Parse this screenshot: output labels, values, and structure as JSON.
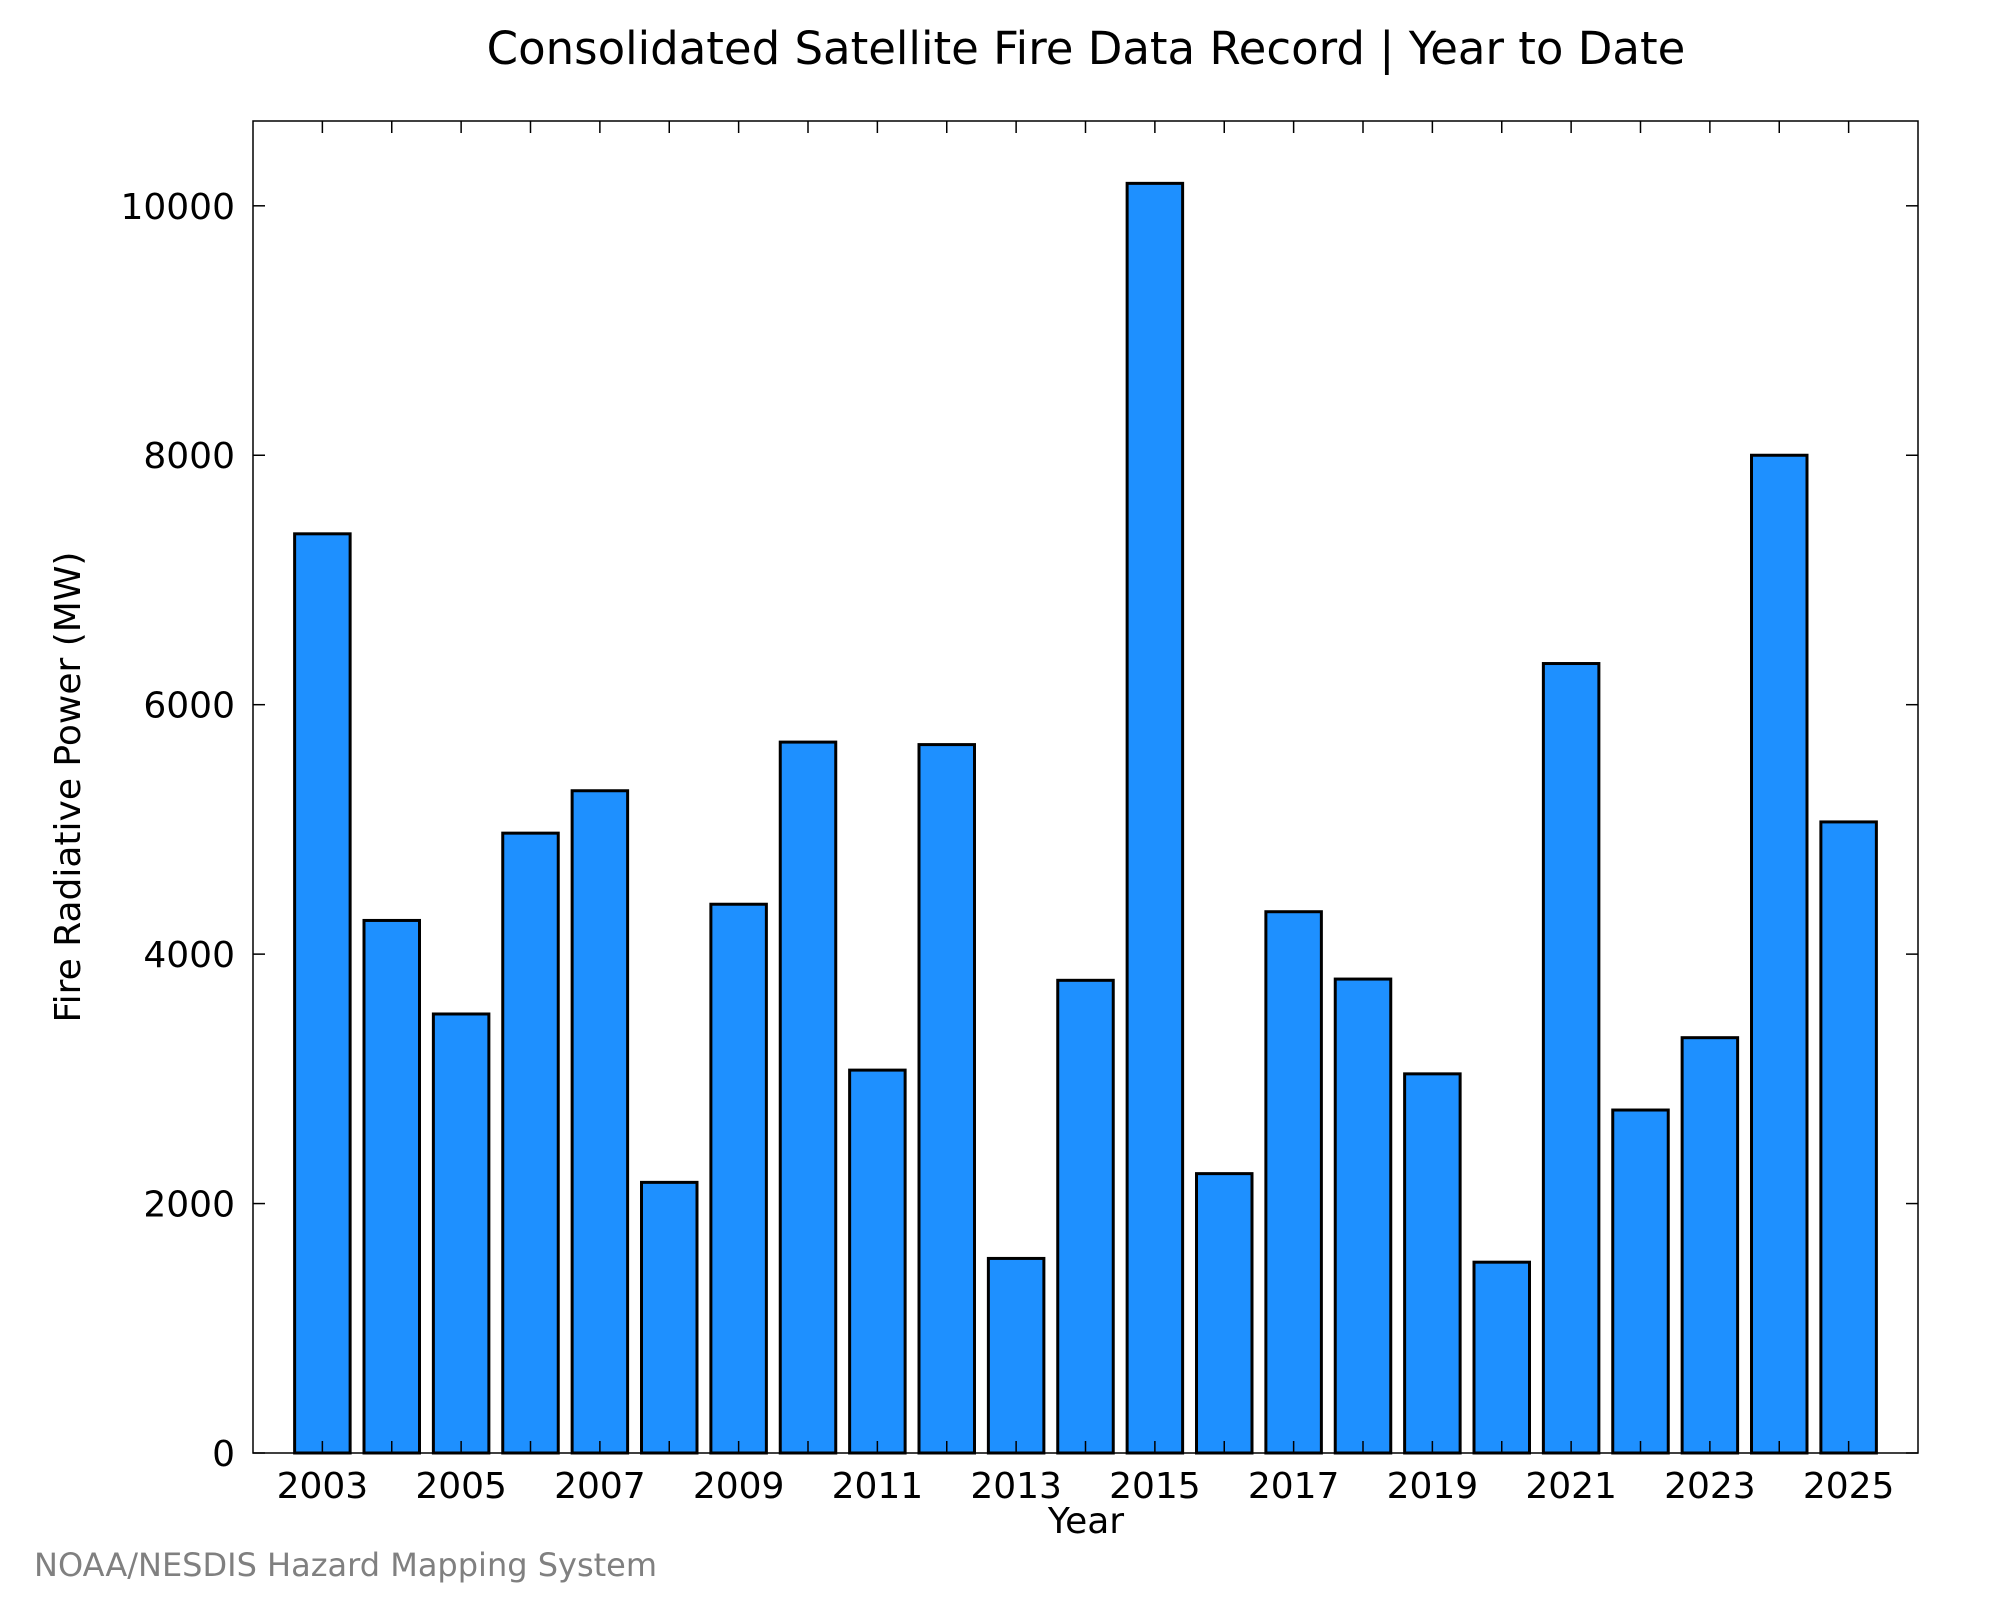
{
  "chart_data": {
    "type": "bar",
    "title": "Consolidated Satellite Fire Data Record | Year to Date",
    "xlabel": "Year",
    "ylabel": "Fire Radiative Power (MW)",
    "categories": [
      "2003",
      "2004",
      "2005",
      "2006",
      "2007",
      "2008",
      "2009",
      "2010",
      "2011",
      "2012",
      "2013",
      "2014",
      "2015",
      "2016",
      "2017",
      "2018",
      "2019",
      "2020",
      "2021",
      "2022",
      "2023",
      "2024",
      "2025"
    ],
    "values": [
      7370,
      4270,
      3520,
      4970,
      5310,
      2170,
      4400,
      5700,
      3070,
      5680,
      1560,
      3790,
      10180,
      2240,
      4340,
      3800,
      3040,
      1530,
      6330,
      2750,
      3330,
      8000,
      5060
    ],
    "x_tick_labels": [
      "2003",
      "2005",
      "2007",
      "2009",
      "2011",
      "2013",
      "2015",
      "2017",
      "2019",
      "2021",
      "2023",
      "2025"
    ],
    "y_ticks": [
      0,
      2000,
      4000,
      6000,
      8000,
      10000
    ],
    "ylim": [
      0,
      10680
    ],
    "xlim": [
      2002,
      2026
    ],
    "bar_color": "#1e90ff",
    "grid": false,
    "legend": "none"
  },
  "credit": "NOAA/NESDIS Hazard Mapping System"
}
